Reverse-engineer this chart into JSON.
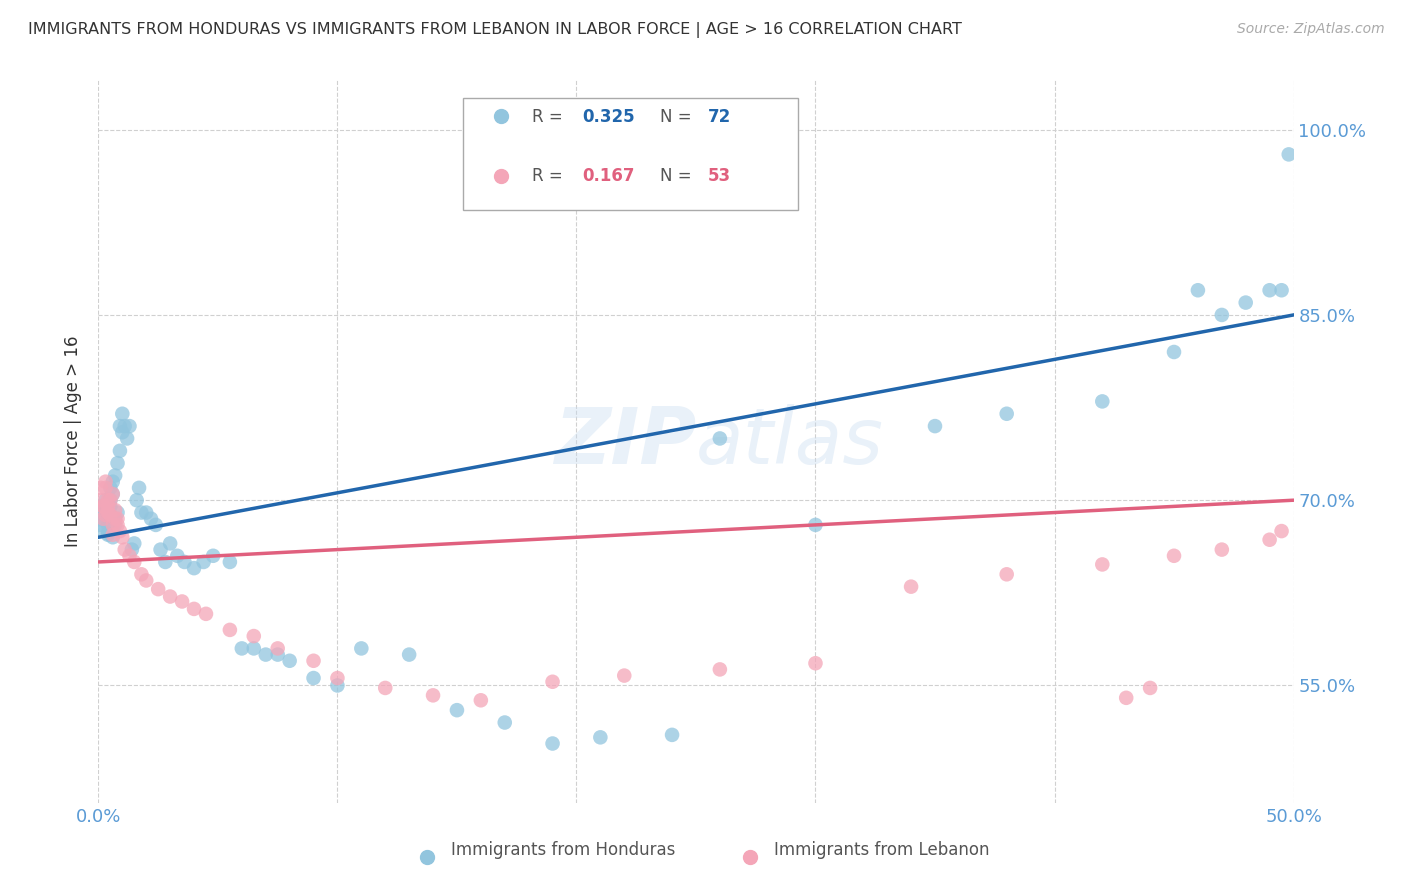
{
  "title": "IMMIGRANTS FROM HONDURAS VS IMMIGRANTS FROM LEBANON IN LABOR FORCE | AGE > 16 CORRELATION CHART",
  "source": "Source: ZipAtlas.com",
  "ylabel": "In Labor Force | Age > 16",
  "xlim": [
    0.0,
    0.5
  ],
  "ylim": [
    0.455,
    1.04
  ],
  "ytick_positions": [
    0.55,
    0.7,
    0.85,
    1.0
  ],
  "ytick_labels": [
    "55.0%",
    "70.0%",
    "85.0%",
    "100.0%"
  ],
  "xtick_positions": [
    0.0,
    0.1,
    0.2,
    0.3,
    0.4,
    0.5
  ],
  "xtick_labels": [
    "0.0%",
    "",
    "",
    "",
    "",
    "50.0%"
  ],
  "legend_blue_r": "0.325",
  "legend_blue_n": "72",
  "legend_pink_r": "0.167",
  "legend_pink_n": "53",
  "legend_label_blue": "Immigrants from Honduras",
  "legend_label_pink": "Immigrants from Lebanon",
  "blue_color": "#92c5de",
  "pink_color": "#f4a6b8",
  "line_blue_color": "#2166ac",
  "line_pink_color": "#e0607e",
  "axis_color": "#5b9bd5",
  "watermark": "ZIPatlas",
  "blue_x": [
    0.001,
    0.001,
    0.002,
    0.002,
    0.003,
    0.003,
    0.003,
    0.004,
    0.004,
    0.004,
    0.004,
    0.005,
    0.005,
    0.005,
    0.006,
    0.006,
    0.006,
    0.007,
    0.007,
    0.007,
    0.008,
    0.008,
    0.009,
    0.009,
    0.01,
    0.01,
    0.011,
    0.012,
    0.013,
    0.014,
    0.015,
    0.016,
    0.017,
    0.018,
    0.02,
    0.022,
    0.024,
    0.026,
    0.028,
    0.03,
    0.033,
    0.036,
    0.04,
    0.044,
    0.048,
    0.055,
    0.06,
    0.065,
    0.07,
    0.075,
    0.08,
    0.09,
    0.1,
    0.11,
    0.13,
    0.15,
    0.17,
    0.19,
    0.21,
    0.24,
    0.26,
    0.3,
    0.35,
    0.38,
    0.42,
    0.45,
    0.47,
    0.49,
    0.495,
    0.498,
    0.48,
    0.46
  ],
  "blue_y": [
    0.675,
    0.68,
    0.69,
    0.685,
    0.695,
    0.7,
    0.692,
    0.688,
    0.673,
    0.672,
    0.68,
    0.695,
    0.7,
    0.71,
    0.705,
    0.67,
    0.715,
    0.72,
    0.68,
    0.685,
    0.69,
    0.73,
    0.74,
    0.76,
    0.77,
    0.755,
    0.76,
    0.75,
    0.76,
    0.66,
    0.665,
    0.7,
    0.71,
    0.69,
    0.69,
    0.685,
    0.68,
    0.66,
    0.65,
    0.665,
    0.655,
    0.65,
    0.645,
    0.65,
    0.655,
    0.65,
    0.58,
    0.58,
    0.575,
    0.575,
    0.57,
    0.556,
    0.55,
    0.58,
    0.575,
    0.53,
    0.52,
    0.503,
    0.508,
    0.51,
    0.75,
    0.68,
    0.76,
    0.77,
    0.78,
    0.82,
    0.85,
    0.87,
    0.87,
    0.98,
    0.86,
    0.87
  ],
  "pink_x": [
    0.001,
    0.001,
    0.002,
    0.002,
    0.002,
    0.003,
    0.003,
    0.003,
    0.004,
    0.004,
    0.004,
    0.005,
    0.005,
    0.006,
    0.006,
    0.006,
    0.007,
    0.007,
    0.008,
    0.008,
    0.009,
    0.01,
    0.011,
    0.013,
    0.015,
    0.018,
    0.02,
    0.025,
    0.03,
    0.035,
    0.04,
    0.045,
    0.055,
    0.065,
    0.075,
    0.09,
    0.1,
    0.12,
    0.14,
    0.16,
    0.19,
    0.22,
    0.26,
    0.3,
    0.34,
    0.38,
    0.42,
    0.45,
    0.47,
    0.49,
    0.495,
    0.43,
    0.44
  ],
  "pink_y": [
    0.7,
    0.71,
    0.695,
    0.685,
    0.695,
    0.71,
    0.715,
    0.688,
    0.7,
    0.695,
    0.69,
    0.7,
    0.688,
    0.705,
    0.68,
    0.672,
    0.685,
    0.692,
    0.68,
    0.685,
    0.675,
    0.67,
    0.66,
    0.655,
    0.65,
    0.64,
    0.635,
    0.628,
    0.622,
    0.618,
    0.612,
    0.608,
    0.595,
    0.59,
    0.58,
    0.57,
    0.556,
    0.548,
    0.542,
    0.538,
    0.553,
    0.558,
    0.563,
    0.568,
    0.63,
    0.64,
    0.648,
    0.655,
    0.66,
    0.668,
    0.675,
    0.54,
    0.548
  ],
  "background_color": "#ffffff",
  "grid_color": "#d0d0d0"
}
